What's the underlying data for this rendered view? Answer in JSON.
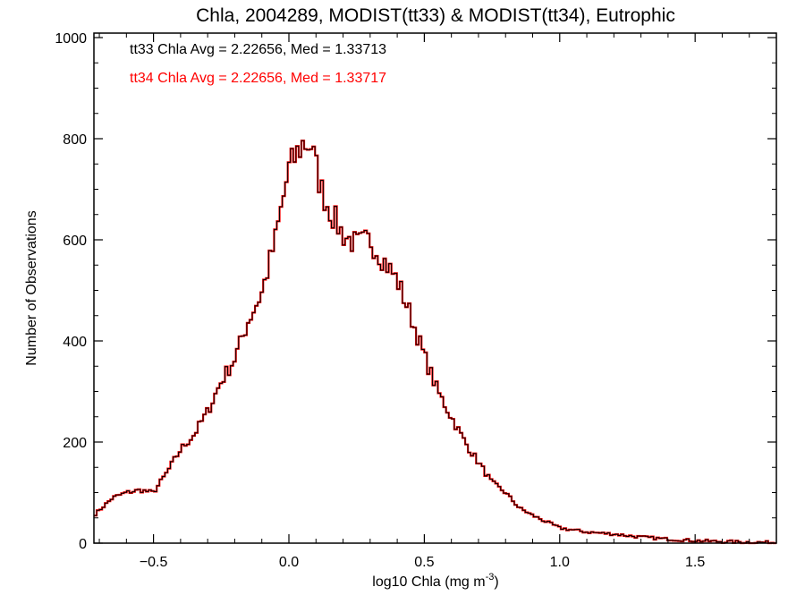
{
  "chart_data": {
    "type": "histogram",
    "title": "Chla, 2004289, MODIST(tt33) & MODIST(tt34), Eutrophic",
    "xlabel": "log10 Chla (mg m",
    "xlabel_sup": "-3",
    "xlabel_end": ")",
    "ylabel": "Number of Observations",
    "xlim": [
      -0.72,
      1.8
    ],
    "ylim": [
      0,
      1000
    ],
    "x_ticks": [
      -0.5,
      0.0,
      0.5,
      1.0,
      1.5
    ],
    "x_tick_labels": [
      "−0.5",
      "0.0",
      "0.5",
      "1.0",
      "1.5"
    ],
    "y_ticks": [
      0,
      200,
      400,
      600,
      800,
      1000
    ],
    "y_tick_labels": [
      "0",
      "200",
      "400",
      "600",
      "800",
      "1000"
    ],
    "grid": false,
    "annotations": [
      {
        "text": "tt33 Chla Avg = 2.22656, Med = 1.33713",
        "color": "#000000"
      },
      {
        "text": "tt34 Chla Avg = 2.22656, Med = 1.33717",
        "color": "#ff0000"
      }
    ],
    "series": [
      {
        "color": "#ff0000",
        "profile": [
          [
            -0.72,
            55
          ],
          [
            -0.65,
            90
          ],
          [
            -0.6,
            100
          ],
          [
            -0.55,
            105
          ],
          [
            -0.5,
            100
          ],
          [
            -0.45,
            140
          ],
          [
            -0.4,
            185
          ],
          [
            -0.35,
            215
          ],
          [
            -0.3,
            260
          ],
          [
            -0.25,
            320
          ],
          [
            -0.2,
            365
          ],
          [
            -0.15,
            440
          ],
          [
            -0.1,
            495
          ],
          [
            -0.05,
            600
          ],
          [
            0.0,
            740
          ],
          [
            0.05,
            790
          ],
          [
            0.08,
            790
          ],
          [
            0.12,
            700
          ],
          [
            0.15,
            660
          ],
          [
            0.2,
            610
          ],
          [
            0.25,
            590
          ],
          [
            0.3,
            600
          ],
          [
            0.35,
            560
          ],
          [
            0.4,
            520
          ],
          [
            0.45,
            450
          ],
          [
            0.5,
            370
          ],
          [
            0.55,
            300
          ],
          [
            0.6,
            250
          ],
          [
            0.65,
            200
          ],
          [
            0.7,
            160
          ],
          [
            0.75,
            120
          ],
          [
            0.8,
            100
          ],
          [
            0.85,
            70
          ],
          [
            0.9,
            55
          ],
          [
            1.0,
            30
          ],
          [
            1.1,
            22
          ],
          [
            1.2,
            18
          ],
          [
            1.3,
            12
          ],
          [
            1.4,
            8
          ],
          [
            1.5,
            5
          ],
          [
            1.6,
            3
          ],
          [
            1.7,
            2
          ],
          [
            1.8,
            1
          ]
        ]
      },
      {
        "color": "#000000",
        "profile": [
          [
            -0.72,
            55
          ],
          [
            -0.65,
            90
          ],
          [
            -0.6,
            100
          ],
          [
            -0.55,
            105
          ],
          [
            -0.5,
            100
          ],
          [
            -0.45,
            140
          ],
          [
            -0.4,
            185
          ],
          [
            -0.35,
            215
          ],
          [
            -0.3,
            260
          ],
          [
            -0.25,
            320
          ],
          [
            -0.2,
            365
          ],
          [
            -0.15,
            440
          ],
          [
            -0.1,
            495
          ],
          [
            -0.05,
            600
          ],
          [
            0.0,
            740
          ],
          [
            0.05,
            790
          ],
          [
            0.08,
            790
          ],
          [
            0.12,
            700
          ],
          [
            0.15,
            660
          ],
          [
            0.2,
            610
          ],
          [
            0.25,
            590
          ],
          [
            0.3,
            600
          ],
          [
            0.35,
            560
          ],
          [
            0.4,
            520
          ],
          [
            0.45,
            450
          ],
          [
            0.5,
            370
          ],
          [
            0.55,
            300
          ],
          [
            0.6,
            250
          ],
          [
            0.65,
            200
          ],
          [
            0.7,
            160
          ],
          [
            0.75,
            120
          ],
          [
            0.8,
            100
          ],
          [
            0.85,
            70
          ],
          [
            0.9,
            55
          ],
          [
            1.0,
            30
          ],
          [
            1.1,
            22
          ],
          [
            1.2,
            18
          ],
          [
            1.3,
            12
          ],
          [
            1.4,
            8
          ],
          [
            1.5,
            5
          ],
          [
            1.6,
            3
          ],
          [
            1.7,
            2
          ],
          [
            1.8,
            1
          ]
        ]
      }
    ]
  }
}
